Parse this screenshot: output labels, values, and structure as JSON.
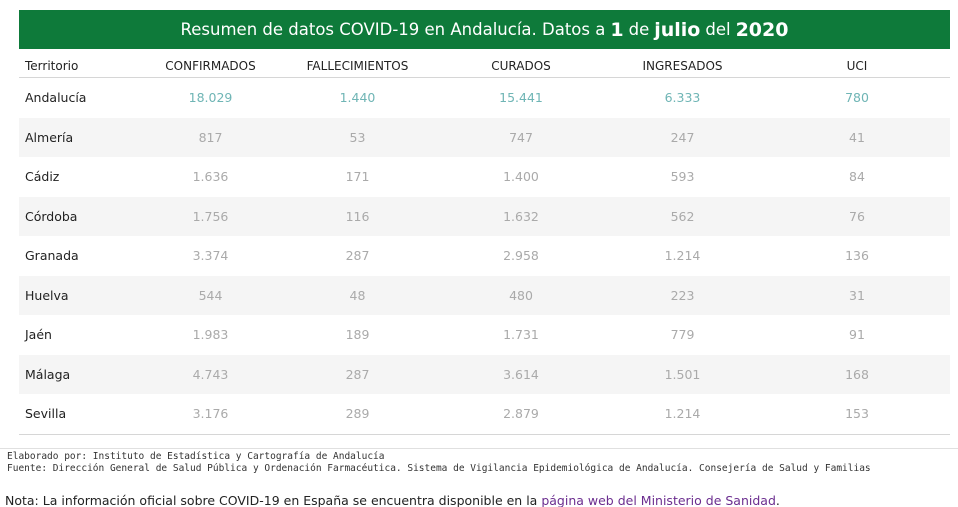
{
  "banner": {
    "prefix": "Resumen de datos COVID-19 en Andalucía. Datos a",
    "day": "1",
    "de": "de",
    "month": "julio",
    "del": "del",
    "year": "2020"
  },
  "table": {
    "headers": [
      "Territorio",
      "CONFIRMADOS",
      "FALLECIMIENTOS",
      "CURADOS",
      "INGRESADOS",
      "UCI"
    ],
    "rows": [
      {
        "name": "Andalucía",
        "values": [
          "18.029",
          "1.440",
          "15.441",
          "6.333",
          "780"
        ]
      },
      {
        "name": "Almería",
        "values": [
          "817",
          "53",
          "747",
          "247",
          "41"
        ]
      },
      {
        "name": "Cádiz",
        "values": [
          "1.636",
          "171",
          "1.400",
          "593",
          "84"
        ]
      },
      {
        "name": "Córdoba",
        "values": [
          "1.756",
          "116",
          "1.632",
          "562",
          "76"
        ]
      },
      {
        "name": "Granada",
        "values": [
          "3.374",
          "287",
          "2.958",
          "1.214",
          "136"
        ]
      },
      {
        "name": "Huelva",
        "values": [
          "544",
          "48",
          "480",
          "223",
          "31"
        ]
      },
      {
        "name": "Jaén",
        "values": [
          "1.983",
          "189",
          "1.731",
          "779",
          "91"
        ]
      },
      {
        "name": "Málaga",
        "values": [
          "4.743",
          "287",
          "3.614",
          "1.501",
          "168"
        ]
      },
      {
        "name": "Sevilla",
        "values": [
          "3.176",
          "289",
          "2.879",
          "1.214",
          "153"
        ]
      }
    ]
  },
  "credits": {
    "elaborado": "Elaborado por: Instituto de Estadística y Cartografía de Andalucía",
    "fuente": "Fuente: Dirección General de Salud Pública y Ordenación Farmacéutica. Sistema de Vigilancia Epidemiológica de Andalucía. Consejería de Salud y Familias"
  },
  "note": {
    "text": "Nota: La información oficial sobre COVID-19 en España se encuentra disponible en la",
    "link": "página web del Ministerio de Sanidad",
    "end": "."
  },
  "colors": {
    "banner_bg": "#0e7a3a",
    "total_values": "#6fb5b5",
    "muted_values": "#aaaaaa",
    "link": "#6b2d8f"
  }
}
